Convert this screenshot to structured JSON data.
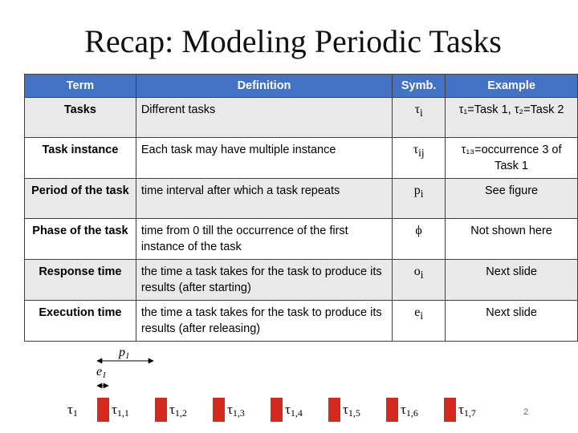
{
  "slide": {
    "title": "Recap: Modeling Periodic Tasks",
    "page_number": "2"
  },
  "table": {
    "headers": [
      "Term",
      "Definition",
      "Symb.",
      "Example"
    ],
    "rows": [
      {
        "term": "Tasks",
        "definition": "Different tasks",
        "symbol": "τ",
        "symbol_sub": "i",
        "example": "τ₁=Task 1, τ₂=Task 2"
      },
      {
        "term": "Task instance",
        "definition": "Each task may have multiple instance",
        "symbol": "τ",
        "symbol_sub": "ij",
        "example": "τ₁₃=occurrence 3 of Task 1"
      },
      {
        "term": "Period of the task",
        "definition": "time interval after which a task repeats",
        "symbol": "p",
        "symbol_sub": "i",
        "example": "See figure"
      },
      {
        "term": "Phase of the task",
        "definition": "time from 0 till the occurrence of the first instance of the task",
        "symbol": "ϕ",
        "symbol_sub": "",
        "example": "Not shown here"
      },
      {
        "term": "Response time",
        "definition": "the time a task takes for the task to produce its results (after starting)",
        "symbol": "o",
        "symbol_sub": "i",
        "example": "Next slide"
      },
      {
        "term": "Execution time",
        "definition": "the time a task takes for the task to produce its results (after releasing)",
        "symbol": "e",
        "symbol_sub": "i",
        "example": "Next slide"
      }
    ]
  },
  "figure": {
    "period_label": "p",
    "period_sub": "1",
    "exec_label": "e",
    "exec_sub": "1",
    "task_label": "τ",
    "task_sub": "1",
    "instance_labels": [
      {
        "base": "τ",
        "sub": "1,1"
      },
      {
        "base": "τ",
        "sub": "1,2"
      },
      {
        "base": "τ",
        "sub": "1,3"
      },
      {
        "base": "τ",
        "sub": "1,4"
      },
      {
        "base": "τ",
        "sub": "1,5"
      },
      {
        "base": "τ",
        "sub": "1,6"
      },
      {
        "base": "τ",
        "sub": "1,7"
      }
    ],
    "bar_color": "#d42a1e"
  }
}
